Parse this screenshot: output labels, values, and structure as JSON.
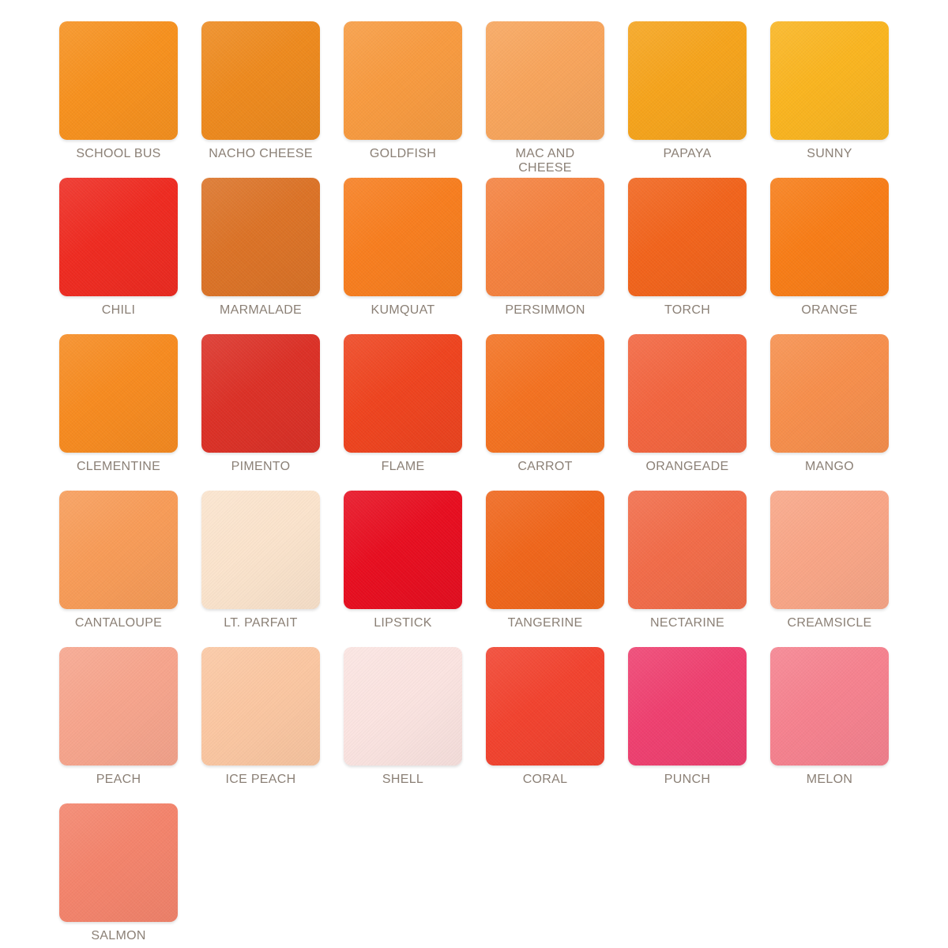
{
  "page": {
    "background": "#FFFFFF",
    "label_color": "#8B8076"
  },
  "swatch_grid": {
    "columns": 6,
    "swatches": [
      {
        "name": "SCHOOL BUS",
        "color": "#F7911E"
      },
      {
        "name": "NACHO CHEESE",
        "color": "#EE8A1E"
      },
      {
        "name": "GOLDFISH",
        "color": "#F89B40"
      },
      {
        "name": "MAC AND CHEESE",
        "color": "#F8A55C"
      },
      {
        "name": "PAPAYA",
        "color": "#F6A41C"
      },
      {
        "name": "SUNNY",
        "color": "#FAB520"
      },
      {
        "name": "CHILI",
        "color": "#EF2B21"
      },
      {
        "name": "MARMALADE",
        "color": "#DC7327"
      },
      {
        "name": "KUMQUAT",
        "color": "#F87E1F"
      },
      {
        "name": "PERSIMMON",
        "color": "#F5823F"
      },
      {
        "name": "TORCH",
        "color": "#F2641C"
      },
      {
        "name": "ORANGE",
        "color": "#F87D17"
      },
      {
        "name": "CLEMENTINE",
        "color": "#F78B20"
      },
      {
        "name": "PIMENTO",
        "color": "#DC3127"
      },
      {
        "name": "FLAME",
        "color": "#EF441F"
      },
      {
        "name": "CARROT",
        "color": "#F47221"
      },
      {
        "name": "ORANGEADE",
        "color": "#F3653F"
      },
      {
        "name": "MANGO",
        "color": "#F78F4C"
      },
      {
        "name": "CANTALOUPE",
        "color": "#F89C58"
      },
      {
        "name": "LT. PARFAIT",
        "color": "#FBE4CD"
      },
      {
        "name": "LIPSTICK",
        "color": "#E80E20"
      },
      {
        "name": "TANGERINE",
        "color": "#F0661B"
      },
      {
        "name": "NECTARINE",
        "color": "#F26C49"
      },
      {
        "name": "CREAMSICLE",
        "color": "#F9A687"
      },
      {
        "name": "PEACH",
        "color": "#F7A58D"
      },
      {
        "name": "ICE PEACH",
        "color": "#FBC7A2"
      },
      {
        "name": "SHELL",
        "color": "#FBE4E1"
      },
      {
        "name": "CORAL",
        "color": "#F2432F"
      },
      {
        "name": "PUNCH",
        "color": "#EF4070"
      },
      {
        "name": "MELON",
        "color": "#F6828F"
      },
      {
        "name": "SALMON",
        "color": "#F4846C"
      }
    ]
  }
}
